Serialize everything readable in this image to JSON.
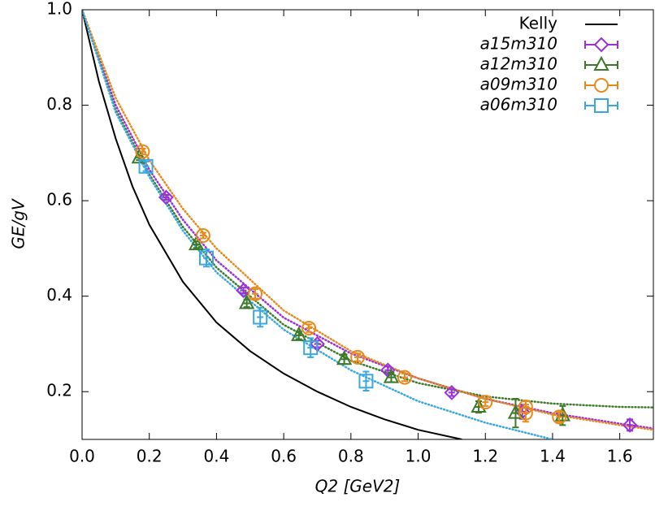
{
  "chart_data": {
    "type": "scatter",
    "xlabel": "Q2 [GeV2]",
    "ylabel": "GE/gV",
    "xlim": [
      0,
      1.7
    ],
    "ylim": [
      0.1,
      1.0
    ],
    "xticks": [
      {
        "value": 0,
        "label": "0.0"
      },
      0.2,
      0.4,
      0.6,
      0.8,
      {
        "value": 1,
        "label": "1.0"
      },
      1.2,
      1.4,
      1.6
    ],
    "yticks": [
      0.2,
      0.4,
      0.6,
      0.8,
      {
        "value": 1,
        "label": "1.0"
      }
    ],
    "legend": "upper right",
    "curve": {
      "name": "Kelly",
      "color": "#000000",
      "x": [
        0,
        0.05,
        0.1,
        0.15,
        0.2,
        0.3,
        0.4,
        0.5,
        0.6,
        0.7,
        0.8,
        0.9,
        1.0,
        1.13
      ],
      "values": [
        1.0,
        0.85,
        0.73,
        0.63,
        0.55,
        0.43,
        0.345,
        0.285,
        0.238,
        0.2,
        0.168,
        0.142,
        0.12,
        0.1
      ]
    },
    "series": [
      {
        "name": "a15m310",
        "color": "#9b30d9",
        "marker": "diamond",
        "x": [
          0.25,
          0.48,
          0.7,
          0.91,
          1.1,
          1.31,
          1.63
        ],
        "values": [
          0.607,
          0.412,
          0.3,
          0.245,
          0.198,
          0.158,
          0.13
        ],
        "errors": [
          0.005,
          0.006,
          0.007,
          0.008,
          0.007,
          0.015,
          0.012
        ],
        "fit": {
          "x": [
            0,
            0.1,
            0.2,
            0.3,
            0.4,
            0.6,
            0.8,
            1.0,
            1.2,
            1.4,
            1.6,
            1.7
          ],
          "values": [
            1.0,
            0.8,
            0.665,
            0.56,
            0.475,
            0.355,
            0.28,
            0.228,
            0.185,
            0.155,
            0.133,
            0.123
          ]
        }
      },
      {
        "name": "a12m310",
        "color": "#3a7a2a",
        "marker": "triangle",
        "x": [
          0.17,
          0.34,
          0.49,
          0.645,
          0.78,
          0.92,
          1.18,
          1.29,
          1.43
        ],
        "values": [
          0.69,
          0.508,
          0.385,
          0.318,
          0.268,
          0.23,
          0.168,
          0.155,
          0.15
        ],
        "errors": [
          0.005,
          0.007,
          0.008,
          0.008,
          0.01,
          0.01,
          0.012,
          0.03,
          0.02
        ],
        "fit": {
          "x": [
            0,
            0.1,
            0.2,
            0.3,
            0.4,
            0.6,
            0.8,
            1.0,
            1.2,
            1.4,
            1.6,
            1.7
          ],
          "values": [
            1.0,
            0.79,
            0.655,
            0.545,
            0.46,
            0.34,
            0.265,
            0.218,
            0.19,
            0.175,
            0.168,
            0.167
          ]
        }
      },
      {
        "name": "a09m310",
        "color": "#e8891c",
        "marker": "circle",
        "x": [
          0.18,
          0.36,
          0.515,
          0.675,
          0.82,
          0.96,
          1.2,
          1.32,
          1.32,
          1.42
        ],
        "values": [
          0.703,
          0.527,
          0.405,
          0.333,
          0.272,
          0.23,
          0.178,
          0.168,
          0.155,
          0.147
        ],
        "errors": [
          0.006,
          0.006,
          0.01,
          0.008,
          0.008,
          0.008,
          0.008,
          0.012,
          0.018,
          0.01
        ],
        "fit": {
          "x": [
            0,
            0.1,
            0.2,
            0.3,
            0.4,
            0.6,
            0.8,
            1.0,
            1.2,
            1.4,
            1.6,
            1.7
          ],
          "values": [
            1.0,
            0.815,
            0.685,
            0.583,
            0.5,
            0.37,
            0.285,
            0.228,
            0.185,
            0.152,
            0.13,
            0.12
          ]
        }
      },
      {
        "name": "a06m310",
        "color": "#3aa8e0",
        "marker": "square",
        "x": [
          0.19,
          0.37,
          0.53,
          0.68,
          0.845
        ],
        "values": [
          0.672,
          0.48,
          0.356,
          0.292,
          0.222
        ],
        "errors": [
          0.01,
          0.018,
          0.02,
          0.02,
          0.02
        ],
        "fit": {
          "x": [
            0,
            0.1,
            0.2,
            0.3,
            0.4,
            0.6,
            0.8,
            1.0,
            1.2,
            1.4
          ],
          "values": [
            1.0,
            0.785,
            0.65,
            0.537,
            0.45,
            0.33,
            0.245,
            0.18,
            0.135,
            0.1
          ]
        }
      }
    ]
  }
}
